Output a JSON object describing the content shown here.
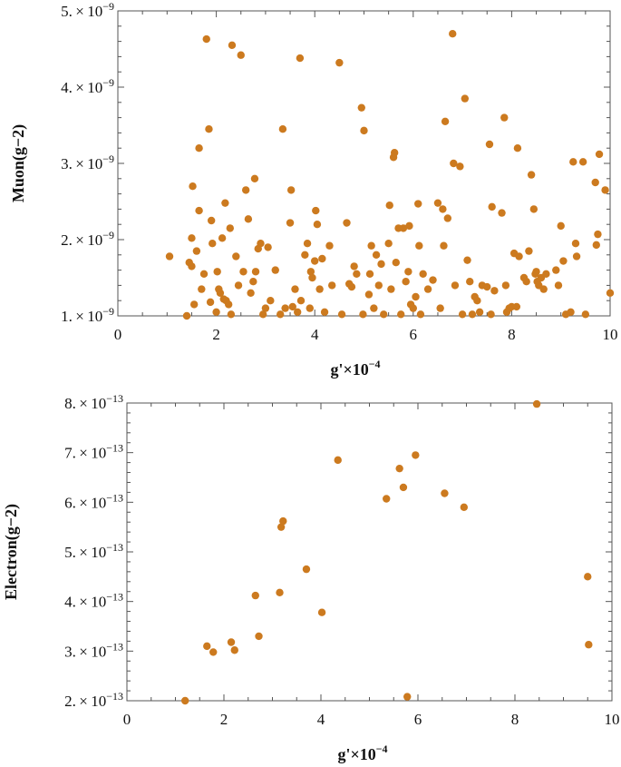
{
  "figure": {
    "marker_color": "#cc7a1f",
    "frame_color": "#555555"
  },
  "chart_data": [
    {
      "type": "scatter",
      "title": "",
      "xlabel": "g'×10",
      "xlabel_exp": "−4",
      "ylabel": "Muon(g−2)",
      "xlim": [
        0,
        10
      ],
      "ylim": [
        1e-09,
        5e-09
      ],
      "x_ticks": [
        {
          "value": 0,
          "label": "0"
        },
        {
          "value": 2,
          "label": "2"
        },
        {
          "value": 4,
          "label": "4"
        },
        {
          "value": 6,
          "label": "6"
        },
        {
          "value": 8,
          "label": "8"
        },
        {
          "value": 10,
          "label": "10"
        }
      ],
      "y_ticks": [
        {
          "value": 1e-09,
          "mant": "1.",
          "exp": "−9"
        },
        {
          "value": 2e-09,
          "mant": "2.",
          "exp": "−9"
        },
        {
          "value": 3e-09,
          "mant": "3.",
          "exp": "−9"
        },
        {
          "value": 4e-09,
          "mant": "4.",
          "exp": "−9"
        },
        {
          "value": 5e-09,
          "mant": "5.",
          "exp": "−9"
        }
      ],
      "points": [
        [
          1.05,
          1.78e-09
        ],
        [
          1.4,
          1e-09
        ],
        [
          1.45,
          1.7e-09
        ],
        [
          1.5,
          2.02e-09
        ],
        [
          1.5,
          1.65e-09
        ],
        [
          1.52,
          2.7e-09
        ],
        [
          1.55,
          1.15e-09
        ],
        [
          1.6,
          1.85e-09
        ],
        [
          1.65,
          2.38e-09
        ],
        [
          1.65,
          3.2e-09
        ],
        [
          1.7,
          1.35e-09
        ],
        [
          1.75,
          1.55e-09
        ],
        [
          1.8,
          4.63e-09
        ],
        [
          1.85,
          3.45e-09
        ],
        [
          1.88,
          1.18e-09
        ],
        [
          1.9,
          2.25e-09
        ],
        [
          1.92,
          1.95e-09
        ],
        [
          2.0,
          1.05e-09
        ],
        [
          2.02,
          1.58e-09
        ],
        [
          2.05,
          1.35e-09
        ],
        [
          2.08,
          1.3e-09
        ],
        [
          2.12,
          2.02e-09
        ],
        [
          2.15,
          1.22e-09
        ],
        [
          2.18,
          2.48e-09
        ],
        [
          2.2,
          1.2e-09
        ],
        [
          2.25,
          1.15e-09
        ],
        [
          2.28,
          2.15e-09
        ],
        [
          2.3,
          1.02e-09
        ],
        [
          2.32,
          4.55e-09
        ],
        [
          2.4,
          1.78e-09
        ],
        [
          2.45,
          1.4e-09
        ],
        [
          2.5,
          4.42e-09
        ],
        [
          2.55,
          1.58e-09
        ],
        [
          2.6,
          2.65e-09
        ],
        [
          2.65,
          2.27e-09
        ],
        [
          2.7,
          1.3e-09
        ],
        [
          2.75,
          1.45e-09
        ],
        [
          2.78,
          2.8e-09
        ],
        [
          2.8,
          1.58e-09
        ],
        [
          2.85,
          1.88e-09
        ],
        [
          2.9,
          1.95e-09
        ],
        [
          2.95,
          1.02e-09
        ],
        [
          3.0,
          1.1e-09
        ],
        [
          3.05,
          1.9e-09
        ],
        [
          3.1,
          1.2e-09
        ],
        [
          3.2,
          1.6e-09
        ],
        [
          3.3,
          1.02e-09
        ],
        [
          3.35,
          3.45e-09
        ],
        [
          3.4,
          1.1e-09
        ],
        [
          3.5,
          2.22e-09
        ],
        [
          3.52,
          2.65e-09
        ],
        [
          3.55,
          1.12e-09
        ],
        [
          3.6,
          1.35e-09
        ],
        [
          3.65,
          1.05e-09
        ],
        [
          3.7,
          4.38e-09
        ],
        [
          3.72,
          1.2e-09
        ],
        [
          3.8,
          1.8e-09
        ],
        [
          3.85,
          1.95e-09
        ],
        [
          3.9,
          1.1e-09
        ],
        [
          3.92,
          1.58e-09
        ],
        [
          3.95,
          1.5e-09
        ],
        [
          4.0,
          1.72e-09
        ],
        [
          4.02,
          2.38e-09
        ],
        [
          4.05,
          2.2e-09
        ],
        [
          4.1,
          1.35e-09
        ],
        [
          4.15,
          1.75e-09
        ],
        [
          4.2,
          1.05e-09
        ],
        [
          4.3,
          1.92e-09
        ],
        [
          4.35,
          1.4e-09
        ],
        [
          4.5,
          4.32e-09
        ],
        [
          4.55,
          1.02e-09
        ],
        [
          4.65,
          2.22e-09
        ],
        [
          4.7,
          1.42e-09
        ],
        [
          4.75,
          1.38e-09
        ],
        [
          4.8,
          1.65e-09
        ],
        [
          4.85,
          1.55e-09
        ],
        [
          4.95,
          3.73e-09
        ],
        [
          4.98,
          1.02e-09
        ],
        [
          5.0,
          3.43e-09
        ],
        [
          5.1,
          1.28e-09
        ],
        [
          5.12,
          1.55e-09
        ],
        [
          5.15,
          1.92e-09
        ],
        [
          5.2,
          1.1e-09
        ],
        [
          5.25,
          1.8e-09
        ],
        [
          5.3,
          1.4e-09
        ],
        [
          5.35,
          1.68e-09
        ],
        [
          5.4,
          1.02e-09
        ],
        [
          5.5,
          1.95e-09
        ],
        [
          5.52,
          2.45e-09
        ],
        [
          5.55,
          1.35e-09
        ],
        [
          5.6,
          3.08e-09
        ],
        [
          5.62,
          3.14e-09
        ],
        [
          5.65,
          1.7e-09
        ],
        [
          5.7,
          2.15e-09
        ],
        [
          5.75,
          1.02e-09
        ],
        [
          5.8,
          2.15e-09
        ],
        [
          5.85,
          1.45e-09
        ],
        [
          5.9,
          1.58e-09
        ],
        [
          5.92,
          2.18e-09
        ],
        [
          5.95,
          1.15e-09
        ],
        [
          6.0,
          1.1e-09
        ],
        [
          6.05,
          1.25e-09
        ],
        [
          6.1,
          2.47e-09
        ],
        [
          6.12,
          1.92e-09
        ],
        [
          6.15,
          1.02e-09
        ],
        [
          6.2,
          1.55e-09
        ],
        [
          6.3,
          1.35e-09
        ],
        [
          6.4,
          1.47e-09
        ],
        [
          6.5,
          2.48e-09
        ],
        [
          6.55,
          1.1e-09
        ],
        [
          6.6,
          2.4e-09
        ],
        [
          6.62,
          1.92e-09
        ],
        [
          6.65,
          3.55e-09
        ],
        [
          6.7,
          2.28e-09
        ],
        [
          6.8,
          4.7e-09
        ],
        [
          6.82,
          3e-09
        ],
        [
          6.85,
          1.4e-09
        ],
        [
          6.95,
          2.96e-09
        ],
        [
          7.0,
          1.02e-09
        ],
        [
          7.05,
          3.85e-09
        ],
        [
          7.1,
          1.73e-09
        ],
        [
          7.15,
          1.45e-09
        ],
        [
          7.2,
          1.02e-09
        ],
        [
          7.25,
          1.25e-09
        ],
        [
          7.3,
          1.2e-09
        ],
        [
          7.35,
          1.05e-09
        ],
        [
          7.4,
          1.4e-09
        ],
        [
          7.5,
          1.38e-09
        ],
        [
          7.55,
          3.25e-09
        ],
        [
          7.58,
          1.02e-09
        ],
        [
          7.6,
          2.43e-09
        ],
        [
          7.65,
          1.33e-09
        ],
        [
          7.8,
          2.35e-09
        ],
        [
          7.85,
          3.6e-09
        ],
        [
          7.88,
          1.4e-09
        ],
        [
          7.9,
          1.05e-09
        ],
        [
          7.95,
          1.1e-09
        ],
        [
          8.0,
          1.12e-09
        ],
        [
          8.05,
          1.82e-09
        ],
        [
          8.1,
          1.12e-09
        ],
        [
          8.12,
          3.2e-09
        ],
        [
          8.15,
          1.78e-09
        ],
        [
          8.25,
          1.5e-09
        ],
        [
          8.3,
          1.45e-09
        ],
        [
          8.35,
          1.85e-09
        ],
        [
          8.4,
          2.85e-09
        ],
        [
          8.45,
          2.4e-09
        ],
        [
          8.48,
          1.55e-09
        ],
        [
          8.5,
          1.58e-09
        ],
        [
          8.52,
          1.45e-09
        ],
        [
          8.55,
          1.4e-09
        ],
        [
          8.6,
          1.5e-09
        ],
        [
          8.65,
          1.35e-09
        ],
        [
          8.7,
          1.55e-09
        ],
        [
          8.9,
          1.6e-09
        ],
        [
          8.95,
          1.4e-09
        ],
        [
          9.0,
          2.18e-09
        ],
        [
          9.05,
          1.72e-09
        ],
        [
          9.1,
          1.02e-09
        ],
        [
          9.2,
          1.05e-09
        ],
        [
          9.25,
          3.02e-09
        ],
        [
          9.3,
          1.95e-09
        ],
        [
          9.32,
          1.78e-09
        ],
        [
          9.45,
          3.02e-09
        ],
        [
          9.5,
          1.02e-09
        ],
        [
          9.7,
          2.75e-09
        ],
        [
          9.72,
          1.93e-09
        ],
        [
          9.75,
          2.07e-09
        ],
        [
          9.78,
          3.12e-09
        ],
        [
          9.9,
          2.65e-09
        ],
        [
          10.0,
          1.3e-09
        ]
      ]
    },
    {
      "type": "scatter",
      "title": "",
      "xlabel": "g'×10",
      "xlabel_exp": "−4",
      "ylabel": "Electron(g−2)",
      "xlim": [
        0,
        10
      ],
      "ylim": [
        2e-13,
        8e-13
      ],
      "x_ticks": [
        {
          "value": 0,
          "label": "0"
        },
        {
          "value": 2,
          "label": "2"
        },
        {
          "value": 4,
          "label": "4"
        },
        {
          "value": 6,
          "label": "6"
        },
        {
          "value": 8,
          "label": "8"
        },
        {
          "value": 10,
          "label": "10"
        }
      ],
      "y_ticks": [
        {
          "value": 2e-13,
          "mant": "2.",
          "exp": "−13"
        },
        {
          "value": 3e-13,
          "mant": "3.",
          "exp": "−13"
        },
        {
          "value": 4e-13,
          "mant": "4.",
          "exp": "−13"
        },
        {
          "value": 5e-13,
          "mant": "5.",
          "exp": "−13"
        },
        {
          "value": 6e-13,
          "mant": "6.",
          "exp": "−13"
        },
        {
          "value": 7e-13,
          "mant": "7.",
          "exp": "−13"
        },
        {
          "value": 8e-13,
          "mant": "8.",
          "exp": "−13"
        }
      ],
      "points": [
        [
          1.2,
          2e-13
        ],
        [
          1.65,
          3.1e-13
        ],
        [
          1.78,
          2.98e-13
        ],
        [
          2.15,
          3.18e-13
        ],
        [
          2.22,
          3.02e-13
        ],
        [
          2.65,
          4.12e-13
        ],
        [
          2.72,
          3.3e-13
        ],
        [
          3.15,
          4.18e-13
        ],
        [
          3.18,
          5.5e-13
        ],
        [
          3.22,
          5.62e-13
        ],
        [
          3.7,
          4.65e-13
        ],
        [
          4.02,
          3.78e-13
        ],
        [
          4.35,
          6.85e-13
        ],
        [
          5.35,
          6.07e-13
        ],
        [
          5.62,
          6.68e-13
        ],
        [
          5.7,
          6.3e-13
        ],
        [
          5.78,
          2.08e-13
        ],
        [
          5.95,
          6.95e-13
        ],
        [
          6.55,
          6.18e-13
        ],
        [
          6.95,
          5.9e-13
        ],
        [
          8.45,
          7.98e-13
        ],
        [
          9.5,
          4.5e-13
        ],
        [
          9.52,
          3.13e-13
        ]
      ]
    }
  ]
}
